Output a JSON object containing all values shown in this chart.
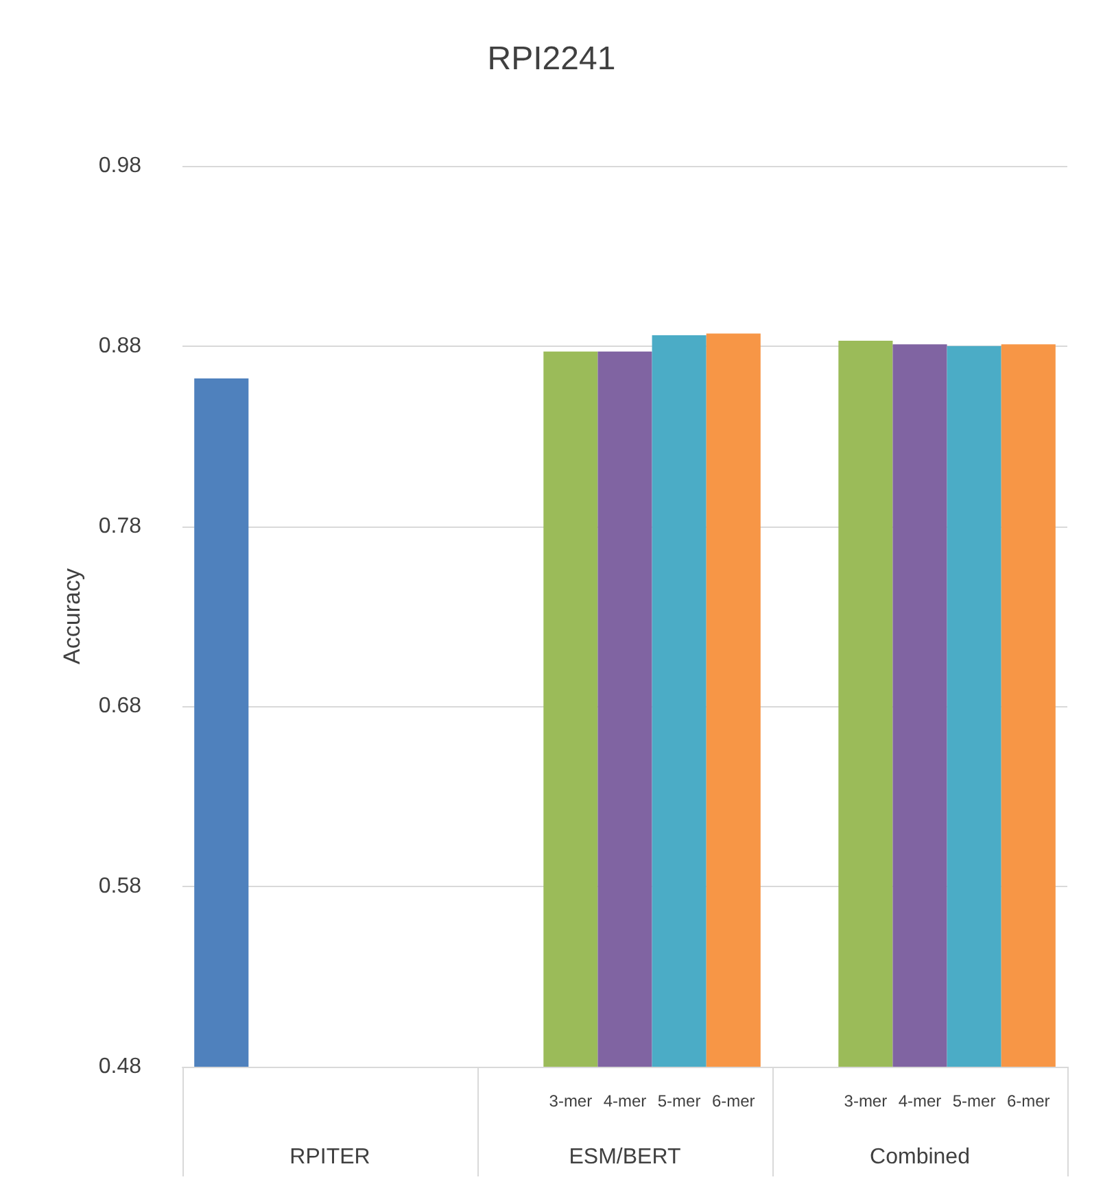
{
  "chart_data": {
    "type": "bar",
    "title": "RPI2241",
    "ylabel": "Accuracy",
    "categories": [
      "RPITER",
      "ESM/BERT",
      "Combined"
    ],
    "series": [
      {
        "color": "#4f81bd",
        "values": [
          0.862,
          null,
          null
        ]
      },
      {
        "name": "3-mer",
        "color": "#9bbb59",
        "values": [
          null,
          0.877,
          0.883
        ]
      },
      {
        "name": "4-mer",
        "color": "#8064a2",
        "values": [
          null,
          0.877,
          0.881
        ]
      },
      {
        "name": "5-mer",
        "color": "#4bacc6",
        "values": [
          null,
          0.886,
          0.88
        ]
      },
      {
        "name": "6-mer",
        "color": "#f79646",
        "values": [
          null,
          0.887,
          0.881
        ]
      }
    ],
    "ylim": [
      0.48,
      0.98
    ],
    "yticks": [
      0.48,
      0.58,
      0.68,
      0.78,
      0.88,
      0.98
    ],
    "grid": "y",
    "legend": false
  }
}
